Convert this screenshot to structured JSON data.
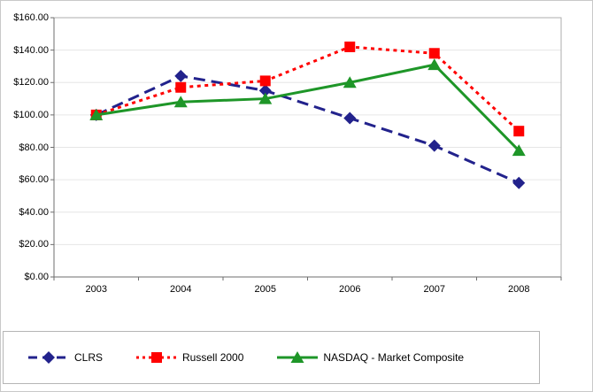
{
  "chart_data": {
    "type": "line",
    "title": "",
    "xlabel": "",
    "ylabel": "",
    "categories": [
      "2003",
      "2004",
      "2005",
      "2006",
      "2007",
      "2008"
    ],
    "series": [
      {
        "name": "CLRS",
        "color": "#22228C",
        "marker": "diamond",
        "line_style": "long-dash",
        "values": [
          100,
          124,
          115,
          98,
          81,
          58
        ]
      },
      {
        "name": "Russell 2000",
        "color": "#FF0000",
        "marker": "square",
        "line_style": "dotted",
        "values": [
          100,
          117,
          121,
          142,
          138,
          90
        ]
      },
      {
        "name": "NASDAQ - Market Composite",
        "color": "#1E9628",
        "marker": "triangle-up",
        "line_style": "solid",
        "values": [
          100,
          108,
          110,
          120,
          131,
          78
        ]
      }
    ],
    "ylim": [
      0,
      160
    ],
    "ytick_step": 20,
    "yticks": [
      "$160.00",
      "$140.00",
      "$120.00",
      "$100.00",
      "$80.00",
      "$60.00",
      "$40.00",
      "$20.00",
      "$0.00"
    ],
    "grid": true,
    "legend_position": "bottom"
  },
  "colors": {
    "background": "#FFFFFF",
    "outer_border": "#C9C9C9",
    "plot_border": "#ADADAD",
    "axis": "#6E6E6E",
    "gridline": "#E6E6E6",
    "legend_border": "#B5B5B5",
    "text": "#000000"
  }
}
